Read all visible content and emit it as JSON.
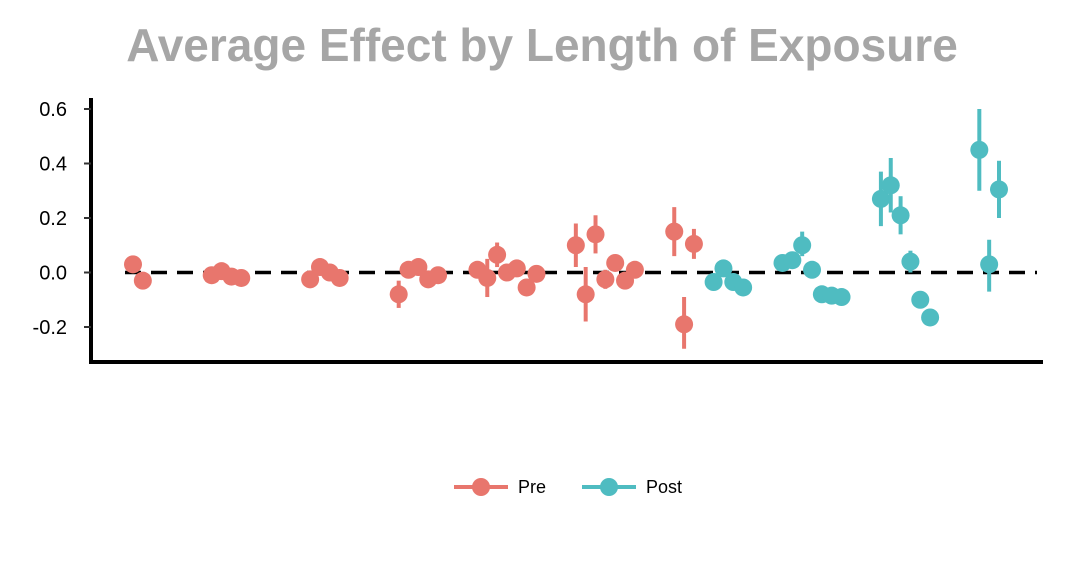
{
  "chart_data": {
    "type": "scatter",
    "title": "Average Effect by Length of Exposure",
    "xlabel": "",
    "ylabel": "",
    "ylim": [
      -0.33,
      0.65
    ],
    "xlim": [
      0,
      92
    ],
    "y_ticks": [
      "0.6",
      "0.4",
      "0.2",
      "0.0",
      "-0.2"
    ],
    "y_tick_values": [
      0.6,
      0.4,
      0.2,
      0.0,
      -0.2
    ],
    "reference_line": 0.0,
    "legend_position": "bottom",
    "series": [
      {
        "name": "Pre",
        "color": "#e8766d",
        "points": [
          {
            "x": 3,
            "y": 0.03,
            "lo": 0.03,
            "hi": 0.03
          },
          {
            "x": 4,
            "y": -0.03,
            "lo": -0.03,
            "hi": -0.03
          },
          {
            "x": 11,
            "y": -0.01,
            "lo": -0.01,
            "hi": -0.01
          },
          {
            "x": 12,
            "y": 0.005,
            "lo": 0.005,
            "hi": 0.005
          },
          {
            "x": 13,
            "y": -0.015,
            "lo": -0.015,
            "hi": -0.015
          },
          {
            "x": 14,
            "y": -0.02,
            "lo": -0.02,
            "hi": -0.02
          },
          {
            "x": 21,
            "y": -0.025,
            "lo": -0.025,
            "hi": -0.025
          },
          {
            "x": 22,
            "y": 0.02,
            "lo": 0.02,
            "hi": 0.02
          },
          {
            "x": 23,
            "y": 0.0,
            "lo": 0.0,
            "hi": 0.0
          },
          {
            "x": 24,
            "y": -0.02,
            "lo": -0.02,
            "hi": -0.02
          },
          {
            "x": 30,
            "y": -0.08,
            "lo": -0.13,
            "hi": -0.03
          },
          {
            "x": 31,
            "y": 0.01,
            "lo": -0.01,
            "hi": 0.03
          },
          {
            "x": 32,
            "y": 0.02,
            "lo": 0.0,
            "hi": 0.04
          },
          {
            "x": 33,
            "y": -0.025,
            "lo": -0.045,
            "hi": -0.005
          },
          {
            "x": 34,
            "y": -0.01,
            "lo": -0.03,
            "hi": 0.01
          },
          {
            "x": 38,
            "y": 0.01,
            "lo": -0.02,
            "hi": 0.04
          },
          {
            "x": 39,
            "y": -0.02,
            "lo": -0.09,
            "hi": 0.05
          },
          {
            "x": 40,
            "y": 0.065,
            "lo": 0.02,
            "hi": 0.11
          },
          {
            "x": 41,
            "y": 0.0,
            "lo": -0.02,
            "hi": 0.02
          },
          {
            "x": 42,
            "y": 0.015,
            "lo": -0.01,
            "hi": 0.04
          },
          {
            "x": 43,
            "y": -0.055,
            "lo": -0.075,
            "hi": -0.035
          },
          {
            "x": 44,
            "y": -0.005,
            "lo": -0.02,
            "hi": 0.01
          },
          {
            "x": 48,
            "y": 0.1,
            "lo": 0.02,
            "hi": 0.18
          },
          {
            "x": 49,
            "y": -0.08,
            "lo": -0.18,
            "hi": 0.02
          },
          {
            "x": 50,
            "y": 0.14,
            "lo": 0.07,
            "hi": 0.21
          },
          {
            "x": 51,
            "y": -0.025,
            "lo": -0.06,
            "hi": 0.01
          },
          {
            "x": 52,
            "y": 0.035,
            "lo": 0.01,
            "hi": 0.06
          },
          {
            "x": 53,
            "y": -0.03,
            "lo": -0.05,
            "hi": -0.01
          },
          {
            "x": 54,
            "y": 0.01,
            "lo": -0.01,
            "hi": 0.03
          },
          {
            "x": 58,
            "y": 0.15,
            "lo": 0.06,
            "hi": 0.24
          },
          {
            "x": 59,
            "y": -0.19,
            "lo": -0.28,
            "hi": -0.09
          },
          {
            "x": 60,
            "y": 0.105,
            "lo": 0.05,
            "hi": 0.16
          }
        ]
      },
      {
        "name": "Post",
        "color": "#4fbcc1",
        "points": [
          {
            "x": 62,
            "y": -0.035,
            "lo": -0.035,
            "hi": -0.035
          },
          {
            "x": 63,
            "y": 0.015,
            "lo": -0.01,
            "hi": 0.04
          },
          {
            "x": 64,
            "y": -0.035,
            "lo": -0.045,
            "hi": -0.025
          },
          {
            "x": 65,
            "y": -0.055,
            "lo": -0.065,
            "hi": -0.045
          },
          {
            "x": 69,
            "y": 0.035,
            "lo": 0.02,
            "hi": 0.05
          },
          {
            "x": 70,
            "y": 0.045,
            "lo": 0.02,
            "hi": 0.07
          },
          {
            "x": 71,
            "y": 0.1,
            "lo": 0.06,
            "hi": 0.15
          },
          {
            "x": 72,
            "y": 0.01,
            "lo": 0.0,
            "hi": 0.02
          },
          {
            "x": 73,
            "y": -0.08,
            "lo": -0.08,
            "hi": -0.08
          },
          {
            "x": 74,
            "y": -0.085,
            "lo": -0.085,
            "hi": -0.085
          },
          {
            "x": 75,
            "y": -0.09,
            "lo": -0.09,
            "hi": -0.09
          },
          {
            "x": 79,
            "y": 0.27,
            "lo": 0.17,
            "hi": 0.37
          },
          {
            "x": 80,
            "y": 0.32,
            "lo": 0.22,
            "hi": 0.42
          },
          {
            "x": 81,
            "y": 0.21,
            "lo": 0.14,
            "hi": 0.28
          },
          {
            "x": 82,
            "y": 0.04,
            "lo": 0.0,
            "hi": 0.08
          },
          {
            "x": 83,
            "y": -0.1,
            "lo": -0.1,
            "hi": -0.1
          },
          {
            "x": 84,
            "y": -0.165,
            "lo": -0.165,
            "hi": -0.165
          },
          {
            "x": 89,
            "y": 0.45,
            "lo": 0.3,
            "hi": 0.6
          },
          {
            "x": 90,
            "y": 0.03,
            "lo": -0.07,
            "hi": 0.12
          },
          {
            "x": 91,
            "y": 0.305,
            "lo": 0.2,
            "hi": 0.41
          }
        ]
      }
    ]
  }
}
